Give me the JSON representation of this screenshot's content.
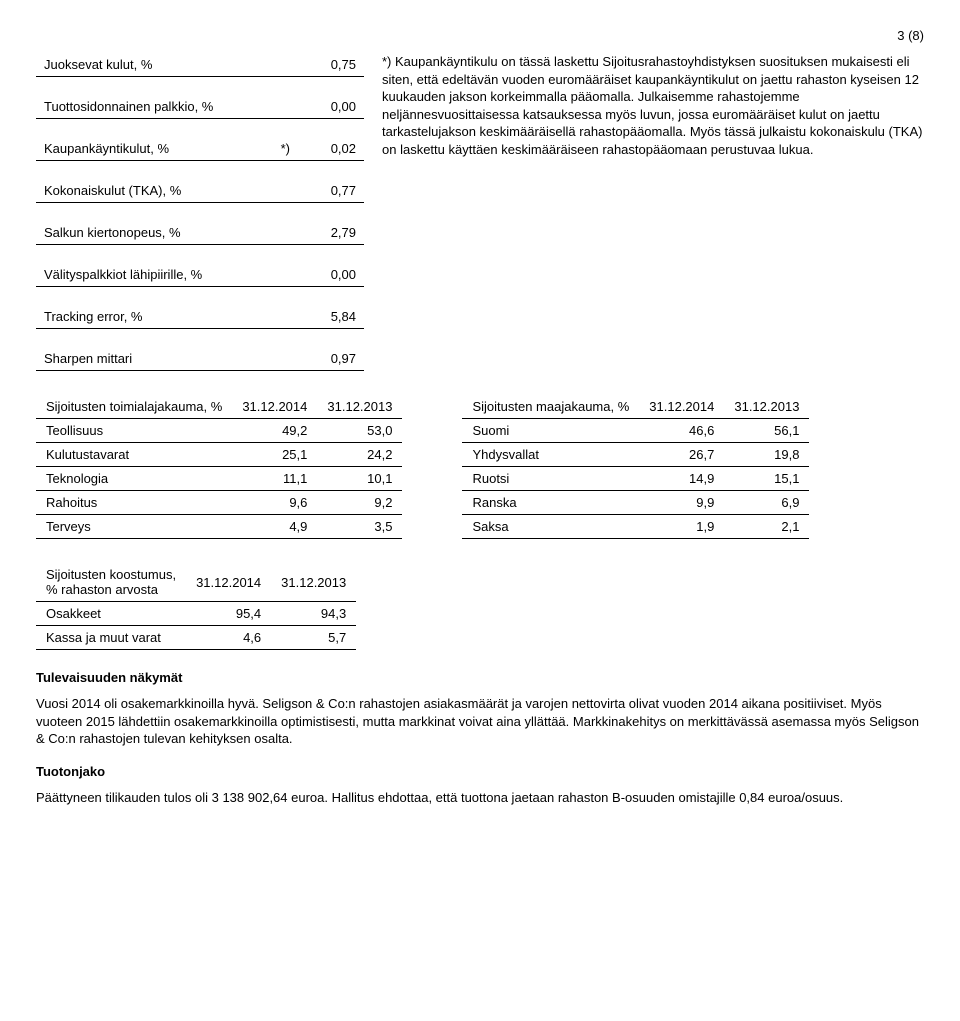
{
  "page_number_label": "3 (8)",
  "metrics": {
    "rows": [
      {
        "label": "Juoksevat kulut, %",
        "mark": "",
        "value": "0,75",
        "border": true
      },
      {
        "label": "Tuottosidonnainen palkkio, %",
        "mark": "",
        "value": "0,00",
        "border": true
      },
      {
        "label": "Kaupankäyntikulut, %",
        "mark": "*)",
        "value": "0,02",
        "border": true
      },
      {
        "label": "Kokonaiskulut (TKA), %",
        "mark": "",
        "value": "0,77",
        "border": true
      },
      {
        "label": "Salkun kiertonopeus, %",
        "mark": "",
        "value": "2,79",
        "border": true
      },
      {
        "label": "Välityspalkkiot lähipiirille, %",
        "mark": "",
        "value": "0,00",
        "border": true
      },
      {
        "label": "Tracking error, %",
        "mark": "",
        "value": "5,84",
        "border": true
      },
      {
        "label": "Sharpen mittari",
        "mark": "",
        "value": "0,97",
        "border": true
      }
    ]
  },
  "explanation": "*) Kaupankäyntikulu on tässä laskettu Sijoitusrahastoyhdistyksen suosituksen mukaisesti eli siten, että edeltävän vuoden euromääräiset kaupankäyntikulut on jaettu rahaston kyseisen 12 kuukauden jakson korkeimmalla pääomalla. Julkaisemme rahastojemme neljännesvuosittaisessa katsauksessa myös luvun, jossa euromääräiset kulut on jaettu tarkastelujakson keskimääräisellä rahastopääomalla. Myös tässä julkaistu kokonaiskulu (TKA) on laskettu käyttäen keskimääräiseen rahastopääomaan perustuvaa lukua.",
  "sector_table": {
    "title": "Sijoitusten toimialajakauma, %",
    "col1": "31.12.2014",
    "col2": "31.12.2013",
    "rows": [
      {
        "label": "Teollisuus",
        "v1": "49,2",
        "v2": "53,0"
      },
      {
        "label": "Kulutustavarat",
        "v1": "25,1",
        "v2": "24,2"
      },
      {
        "label": "Teknologia",
        "v1": "11,1",
        "v2": "10,1"
      },
      {
        "label": "Rahoitus",
        "v1": "9,6",
        "v2": "9,2"
      },
      {
        "label": "Terveys",
        "v1": "4,9",
        "v2": "3,5"
      }
    ]
  },
  "country_table": {
    "title": "Sijoitusten maajakauma, %",
    "col1": "31.12.2014",
    "col2": "31.12.2013",
    "rows": [
      {
        "label": "Suomi",
        "v1": "46,6",
        "v2": "56,1"
      },
      {
        "label": "Yhdysvallat",
        "v1": "26,7",
        "v2": "19,8"
      },
      {
        "label": "Ruotsi",
        "v1": "14,9",
        "v2": "15,1"
      },
      {
        "label": "Ranska",
        "v1": "9,9",
        "v2": "6,9"
      },
      {
        "label": "Saksa",
        "v1": "1,9",
        "v2": "2,1"
      }
    ]
  },
  "composition_table": {
    "title_line1": "Sijoitusten koostumus,",
    "title_line2": "% rahaston arvosta",
    "col1": "31.12.2014",
    "col2": "31.12.2013",
    "rows": [
      {
        "label": "Osakkeet",
        "v1": "95,4",
        "v2": "94,3"
      },
      {
        "label": "Kassa ja muut varat",
        "v1": "4,6",
        "v2": "5,7"
      }
    ]
  },
  "future": {
    "heading": "Tulevaisuuden näkymät",
    "text": "Vuosi 2014 oli osakemarkkinoilla hyvä. Seligson & Co:n rahastojen asiakasmäärät ja varojen nettovirta olivat vuoden 2014 aikana positiiviset. Myös vuoteen 2015 lähdettiin osakemarkkinoilla optimistisesti, mutta markkinat voivat aina yllättää. Markkinakehitys on merkittävässä asemassa myös Seligson & Co:n rahastojen tulevan kehityksen osalta."
  },
  "distribution": {
    "heading": "Tuotonjako",
    "text": "Päättyneen tilikauden tulos oli 3 138 902,64 euroa. Hallitus ehdottaa, että tuottona jaetaan rahaston B-osuuden omistajille 0,84 euroa/osuus."
  }
}
